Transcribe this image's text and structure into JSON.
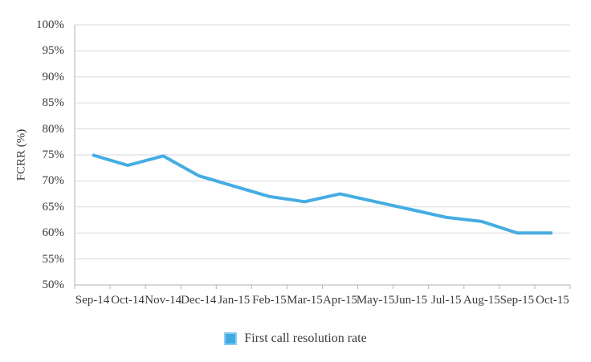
{
  "chart_data": {
    "type": "line",
    "title": "",
    "xlabel": "",
    "ylabel": "FCRR (%)",
    "categories": [
      "Sep-14",
      "Oct-14",
      "Nov-14",
      "Dec-14",
      "Jan-15",
      "Feb-15",
      "Mar-15",
      "Apr-15",
      "May-15",
      "Jun-15",
      "Jul-15",
      "Aug-15",
      "Sep-15",
      "Oct-15"
    ],
    "series": [
      {
        "name": "First call resolution rate",
        "values": [
          75,
          73,
          74.8,
          71,
          69,
          67,
          66,
          67.5,
          66,
          64.5,
          63,
          62.2,
          60,
          60
        ]
      }
    ],
    "ylim": [
      50,
      100
    ],
    "ytick_step": 5,
    "ytick_labels": [
      "100%",
      "95%",
      "90%",
      "85%",
      "80%",
      "75%",
      "70%",
      "65%",
      "60%",
      "55%",
      "50%"
    ],
    "grid": true,
    "legend_position": "bottom"
  },
  "legend": {
    "label": "First call resolution rate"
  },
  "colors": {
    "line": "#45ade2",
    "legend_swatch_fill": "#40aae1",
    "legend_swatch_border": "#8bcdf1",
    "gridline": "#dadade",
    "axis": "#b2b2b7",
    "text": "#3b3b3b"
  }
}
